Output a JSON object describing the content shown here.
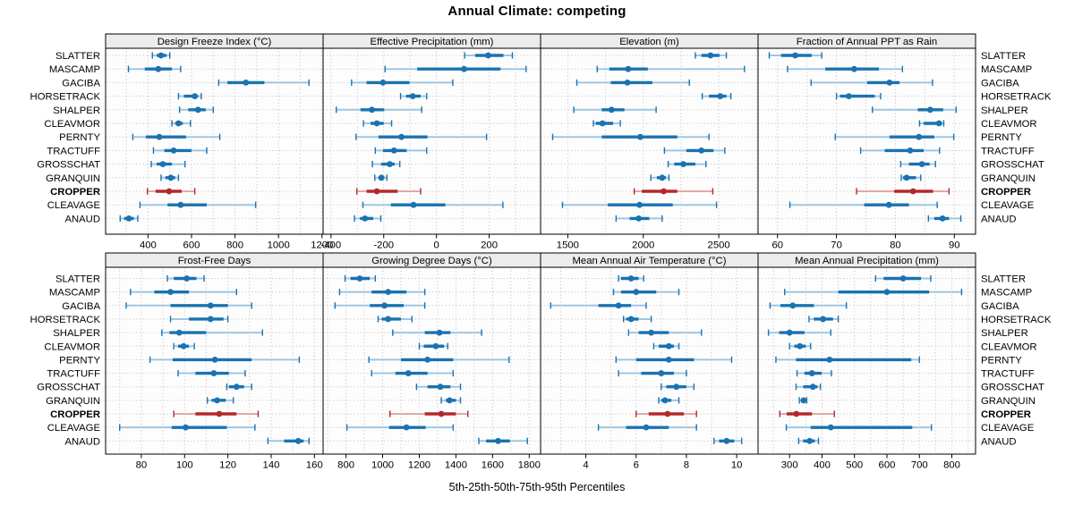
{
  "title": "Annual Climate: competing",
  "xlabel": "5th-25th-50th-75th-95th Percentiles",
  "sites": [
    "SLATTER",
    "MASCAMP",
    "GACIBA",
    "HORSETRACK",
    "SHALPER",
    "CLEAVMOR",
    "PERNTY",
    "TRACTUFF",
    "GROSSCHAT",
    "GRANQUIN",
    "CROPPER",
    "CLEAVAGE",
    "ANAUD"
  ],
  "highlight_site": "CROPPER",
  "colors": {
    "point_blue": "#1a72b0",
    "whisker_blue": "#9fc6e2",
    "point_red": "#b3282d",
    "whisker_red": "#e2a9a9",
    "grid": "#c6c6c6",
    "strip_bg": "#ececec",
    "panel_bg": "#fdfdfd",
    "border": "#000000"
  },
  "chart_data": [
    {
      "type": "dotplot-percentile",
      "row": 0,
      "col": 0,
      "panel": "Design Freeze Index (°C)",
      "xlim": [
        205,
        1205
      ],
      "ticks": [
        400,
        600,
        800,
        1000,
        1200
      ],
      "percentile_labels": [
        "p5",
        "p25",
        "p50",
        "p75",
        "p95"
      ],
      "values": {
        "SLATTER": [
          420,
          440,
          460,
          485,
          500
        ],
        "MASCAMP": [
          310,
          385,
          447,
          510,
          550
        ],
        "GACIBA": [
          725,
          765,
          850,
          935,
          1140
        ],
        "HORSETRACK": [
          540,
          565,
          615,
          630,
          645
        ],
        "SHALPER": [
          545,
          585,
          630,
          665,
          700
        ],
        "CLEAVMOR": [
          510,
          525,
          540,
          560,
          595
        ],
        "PERNTY": [
          330,
          390,
          452,
          575,
          730
        ],
        "TRACTUFF": [
          425,
          475,
          518,
          600,
          670
        ],
        "GROSSCHAT": [
          415,
          440,
          468,
          510,
          570
        ],
        "GRANQUIN": [
          460,
          480,
          505,
          525,
          540
        ],
        "CROPPER": [
          397,
          435,
          497,
          555,
          615
        ],
        "CLEAVAGE": [
          363,
          490,
          550,
          670,
          895
        ],
        "ANAUD": [
          272,
          290,
          312,
          335,
          353
        ]
      }
    },
    {
      "type": "dotplot-percentile",
      "row": 0,
      "col": 1,
      "panel": "Effective Precipitation (mm)",
      "xlim": [
        -430,
        395
      ],
      "ticks": [
        -400,
        -200,
        0,
        200
      ],
      "percentile_labels": [
        "p5",
        "p25",
        "p50",
        "p75",
        "p95"
      ],
      "values": {
        "SLATTER": [
          107,
          147,
          196,
          254,
          288
        ],
        "MASCAMP": [
          -195,
          -73,
          105,
          243,
          340
        ],
        "GACIBA": [
          -322,
          -265,
          -203,
          -102,
          62
        ],
        "HORSETRACK": [
          -136,
          -115,
          -90,
          -60,
          -37
        ],
        "SHALPER": [
          -380,
          -288,
          -245,
          -198,
          -56
        ],
        "CLEAVMOR": [
          -277,
          -250,
          -226,
          -200,
          -170
        ],
        "PERNTY": [
          -305,
          -220,
          -133,
          -34,
          190
        ],
        "TRACTUFF": [
          -232,
          -203,
          -161,
          -113,
          -37
        ],
        "GROSSCHAT": [
          -243,
          -210,
          -177,
          -158,
          -139
        ],
        "GRANQUIN": [
          -234,
          -220,
          -209,
          -198,
          -188
        ],
        "CROPPER": [
          -302,
          -265,
          -226,
          -147,
          -60
        ],
        "CLEAVAGE": [
          -279,
          -173,
          -87,
          34,
          252
        ],
        "ANAUD": [
          -311,
          -290,
          -271,
          -240,
          -211
        ]
      }
    },
    {
      "type": "dotplot-percentile",
      "row": 0,
      "col": 2,
      "panel": "Elevation (m)",
      "xlim": [
        1320,
        2760
      ],
      "ticks": [
        1500,
        2000,
        2500
      ],
      "percentile_labels": [
        "p5",
        "p25",
        "p50",
        "p75",
        "p95"
      ],
      "values": {
        "SLATTER": [
          2345,
          2385,
          2445,
          2505,
          2550
        ],
        "MASCAMP": [
          1695,
          1775,
          1900,
          2030,
          2670
        ],
        "GACIBA": [
          1560,
          1785,
          1895,
          2060,
          2305
        ],
        "HORSETRACK": [
          2390,
          2435,
          2510,
          2550,
          2580
        ],
        "SHALPER": [
          1540,
          1725,
          1790,
          1875,
          2085
        ],
        "CLEAVMOR": [
          1670,
          1685,
          1730,
          1800,
          1848
        ],
        "PERNTY": [
          1400,
          1725,
          1980,
          2225,
          2435
        ],
        "TRACTUFF": [
          2140,
          2285,
          2385,
          2465,
          2540
        ],
        "GROSSCHAT": [
          2165,
          2205,
          2265,
          2345,
          2415
        ],
        "GRANQUIN": [
          2050,
          2090,
          2125,
          2150,
          2170
        ],
        "CROPPER": [
          1940,
          1990,
          2135,
          2225,
          2460
        ],
        "CLEAVAGE": [
          1465,
          1765,
          1975,
          2195,
          2485
        ],
        "ANAUD": [
          1820,
          1910,
          1970,
          2040,
          2125
        ]
      }
    },
    {
      "type": "dotplot-percentile",
      "row": 0,
      "col": 3,
      "panel": "Fraction of Annual PPT as Rain",
      "xlim": [
        56.7,
        93.6
      ],
      "ticks": [
        60,
        70,
        80,
        90
      ],
      "percentile_labels": [
        "p5",
        "p25",
        "p50",
        "p75",
        "p95"
      ],
      "values": {
        "SLATTER": [
          58.6,
          60.6,
          63.0,
          65.8,
          67.5
        ],
        "MASCAMP": [
          61.7,
          68.1,
          73.0,
          77.2,
          81.2
        ],
        "GACIBA": [
          65.7,
          75.2,
          79.0,
          80.7,
          86.3
        ],
        "HORSETRACK": [
          70.0,
          70.6,
          72.1,
          76.5,
          77.5
        ],
        "SHALPER": [
          76.1,
          83.8,
          85.9,
          88.1,
          90.3
        ],
        "CLEAVMOR": [
          84.1,
          84.8,
          87.4,
          87.9,
          88.2
        ],
        "PERNTY": [
          69.8,
          79.0,
          84.0,
          86.6,
          89.9
        ],
        "TRACTUFF": [
          74.1,
          78.2,
          82.5,
          84.8,
          87.5
        ],
        "GROSSCHAT": [
          80.9,
          82.3,
          84.5,
          85.8,
          86.8
        ],
        "GRANQUIN": [
          81.0,
          81.3,
          81.9,
          83.5,
          84.3
        ],
        "CROPPER": [
          73.4,
          79.8,
          83.0,
          86.4,
          89.1
        ],
        "CLEAVAGE": [
          62.1,
          74.7,
          78.9,
          82.3,
          87.1
        ],
        "ANAUD": [
          85.6,
          86.6,
          88.0,
          89.1,
          91.1
        ]
      }
    },
    {
      "type": "dotplot-percentile",
      "row": 1,
      "col": 0,
      "panel": "Frost-Free Days",
      "xlim": [
        63.5,
        164
      ],
      "ticks": [
        80,
        100,
        120,
        140,
        160
      ],
      "percentile_labels": [
        "p5",
        "p25",
        "p50",
        "p75",
        "p95"
      ],
      "values": {
        "SLATTER": [
          92,
          95,
          101,
          105.5,
          109
        ],
        "MASCAMP": [
          75,
          86,
          93.5,
          102,
          124
        ],
        "GACIBA": [
          73,
          93.5,
          112,
          120,
          131
        ],
        "HORSETRACK": [
          93.5,
          102,
          112,
          118,
          120
        ],
        "SHALPER": [
          89.5,
          93,
          97.5,
          110,
          136
        ],
        "CLEAVMOR": [
          95,
          97,
          99.5,
          102,
          104.5
        ],
        "PERNTY": [
          84,
          94.5,
          114,
          131,
          153
        ],
        "TRACTUFF": [
          97,
          105,
          113.5,
          120.5,
          128
        ],
        "GROSSCHAT": [
          119.5,
          120.5,
          124,
          127.5,
          131
        ],
        "GRANQUIN": [
          110.5,
          112.5,
          115,
          119,
          122.5
        ],
        "CROPPER": [
          95,
          105,
          116,
          124,
          134
        ],
        "CLEAVAGE": [
          70,
          94,
          100.5,
          119.5,
          132.5
        ],
        "ANAUD": [
          138.5,
          146,
          152.5,
          155,
          157.5
        ]
      }
    },
    {
      "type": "dotplot-percentile",
      "row": 1,
      "col": 1,
      "panel": "Growing Degree Days (°C)",
      "xlim": [
        675,
        1862
      ],
      "ticks": [
        800,
        1000,
        1200,
        1400,
        1600,
        1800
      ],
      "percentile_labels": [
        "p5",
        "p25",
        "p50",
        "p75",
        "p95"
      ],
      "values": {
        "SLATTER": [
          795,
          825,
          875,
          930,
          960
        ],
        "MASCAMP": [
          765,
          940,
          1030,
          1130,
          1230
        ],
        "GACIBA": [
          740,
          930,
          1010,
          1115,
          1230
        ],
        "HORSETRACK": [
          975,
          995,
          1030,
          1100,
          1160
        ],
        "SHALPER": [
          1055,
          1230,
          1310,
          1370,
          1540
        ],
        "CLEAVMOR": [
          1200,
          1225,
          1290,
          1335,
          1355
        ],
        "PERNTY": [
          925,
          1100,
          1245,
          1385,
          1690
        ],
        "TRACTUFF": [
          940,
          1070,
          1140,
          1245,
          1385
        ],
        "GROSSCHAT": [
          1185,
          1245,
          1315,
          1370,
          1425
        ],
        "GRANQUIN": [
          1320,
          1345,
          1365,
          1400,
          1425
        ],
        "CROPPER": [
          1040,
          1230,
          1320,
          1400,
          1465
        ],
        "CLEAVAGE": [
          805,
          1035,
          1130,
          1235,
          1385
        ],
        "ANAUD": [
          1525,
          1565,
          1630,
          1695,
          1790
        ]
      }
    },
    {
      "type": "dotplot-percentile",
      "row": 1,
      "col": 2,
      "panel": "Mean Annual Air Temperature (°C)",
      "xlim": [
        2.2,
        10.85
      ],
      "ticks": [
        4,
        6,
        8,
        10
      ],
      "percentile_labels": [
        "p5",
        "p25",
        "p50",
        "p75",
        "p95"
      ],
      "values": {
        "SLATTER": [
          5.3,
          5.4,
          5.8,
          6.1,
          6.3
        ],
        "MASCAMP": [
          5.1,
          5.4,
          6.0,
          6.8,
          7.7
        ],
        "GACIBA": [
          2.6,
          4.5,
          5.3,
          5.8,
          6.4
        ],
        "HORSETRACK": [
          5.5,
          5.6,
          5.8,
          6.1,
          6.6
        ],
        "SHALPER": [
          5.7,
          6.1,
          6.6,
          7.3,
          8.6
        ],
        "CLEAVMOR": [
          6.7,
          6.9,
          7.3,
          7.5,
          7.7
        ],
        "PERNTY": [
          5.2,
          6.0,
          7.3,
          8.3,
          9.8
        ],
        "TRACTUFF": [
          5.3,
          6.2,
          7.0,
          7.5,
          8.0
        ],
        "GROSSCHAT": [
          7.0,
          7.2,
          7.6,
          8.0,
          8.3
        ],
        "GRANQUIN": [
          6.9,
          7.0,
          7.15,
          7.4,
          7.7
        ],
        "CROPPER": [
          6.0,
          6.5,
          7.25,
          7.9,
          8.4
        ],
        "CLEAVAGE": [
          4.5,
          5.6,
          6.4,
          7.3,
          8.4
        ],
        "ANAUD": [
          9.1,
          9.3,
          9.6,
          9.9,
          10.2
        ]
      }
    },
    {
      "type": "dotplot-percentile",
      "row": 1,
      "col": 3,
      "panel": "Mean Annual Precipitation (mm)",
      "xlim": [
        203,
        873
      ],
      "ticks": [
        300,
        400,
        500,
        600,
        700,
        800
      ],
      "percentile_labels": [
        "p5",
        "p25",
        "p50",
        "p75",
        "p95"
      ],
      "values": {
        "SLATTER": [
          565,
          590,
          650,
          705,
          735
        ],
        "MASCAMP": [
          285,
          450,
          600,
          730,
          830
        ],
        "GACIBA": [
          240,
          272,
          310,
          375,
          475
        ],
        "HORSETRACK": [
          360,
          375,
          403,
          434,
          450
        ],
        "SHALPER": [
          235,
          268,
          300,
          346,
          427
        ],
        "CLEAVMOR": [
          300,
          315,
          332,
          350,
          365
        ],
        "PERNTY": [
          258,
          320,
          423,
          675,
          700
        ],
        "TRACTUFF": [
          323,
          346,
          369,
          399,
          429
        ],
        "GROSSCHAT": [
          320,
          342,
          372,
          386,
          395
        ],
        "GRANQUIN": [
          330,
          336,
          343,
          349,
          353
        ],
        "CROPPER": [
          270,
          291,
          321,
          369,
          438
        ],
        "CLEAVAGE": [
          290,
          365,
          427,
          678,
          737
        ],
        "ANAUD": [
          328,
          342,
          362,
          378,
          389
        ]
      }
    }
  ]
}
